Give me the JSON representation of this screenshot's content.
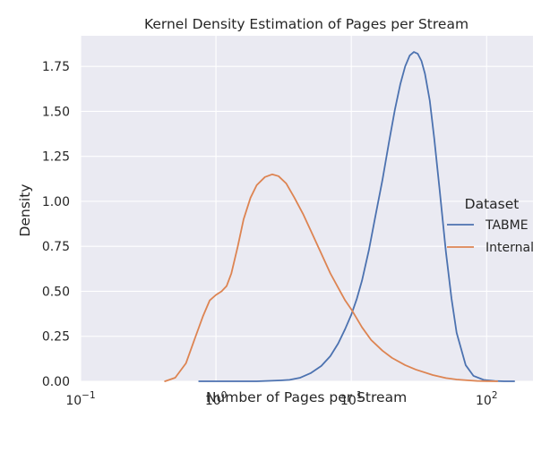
{
  "chart_data": {
    "type": "line",
    "title": "Kernel Density Estimation of Pages per Stream",
    "xlabel": "Number of Pages per Stream",
    "ylabel": "Density",
    "xscale": "log",
    "xlim": [
      0.1,
      220
    ],
    "ylim": [
      0,
      1.92
    ],
    "x_ticks": [
      {
        "value": 0.1,
        "base": "10",
        "exp": "−1"
      },
      {
        "value": 1,
        "base": "10",
        "exp": "0"
      },
      {
        "value": 10,
        "base": "10",
        "exp": "1"
      },
      {
        "value": 100,
        "base": "10",
        "exp": "2"
      }
    ],
    "y_ticks": [
      0.0,
      0.25,
      0.5,
      0.75,
      1.0,
      1.25,
      1.5,
      1.75
    ],
    "y_tick_labels": [
      "0.00",
      "0.25",
      "0.50",
      "0.75",
      "1.00",
      "1.25",
      "1.50",
      "1.75"
    ],
    "grid": true,
    "legend_title": "Dataset",
    "legend_position": "right",
    "series": [
      {
        "name": "TABME",
        "color": "#4c72b0",
        "x": [
          0.75,
          1.0,
          2.0,
          3.0,
          3.5,
          4.2,
          5.0,
          6.0,
          7.0,
          8.0,
          9.0,
          10.0,
          11.0,
          12.0,
          13.5,
          15.0,
          17.0,
          19.0,
          21.0,
          23.0,
          25.0,
          27.0,
          29.0,
          31.0,
          33.0,
          35.0,
          38.0,
          41.0,
          45.0,
          50.0,
          55.0,
          60.0,
          70.0,
          80.0,
          95.0,
          115.0,
          135.0,
          160.0
        ],
        "y": [
          0.0,
          0.0,
          0.0,
          0.005,
          0.008,
          0.02,
          0.045,
          0.085,
          0.14,
          0.21,
          0.29,
          0.37,
          0.46,
          0.56,
          0.73,
          0.91,
          1.12,
          1.33,
          1.51,
          1.65,
          1.75,
          1.81,
          1.83,
          1.82,
          1.78,
          1.71,
          1.56,
          1.35,
          1.06,
          0.72,
          0.46,
          0.27,
          0.09,
          0.03,
          0.008,
          0.002,
          0.0,
          0.0
        ]
      },
      {
        "name": "Internal",
        "color": "#dd8452",
        "x": [
          0.42,
          0.5,
          0.6,
          0.7,
          0.8,
          0.9,
          1.0,
          1.1,
          1.2,
          1.3,
          1.45,
          1.6,
          1.8,
          2.0,
          2.3,
          2.6,
          2.9,
          3.3,
          3.8,
          4.4,
          5.0,
          6.0,
          7.0,
          8.0,
          9.0,
          10.0,
          12.0,
          14.0,
          17.0,
          20.0,
          25.0,
          30.0,
          40.0,
          50.0,
          60.0,
          70.0,
          85.0,
          100.0,
          120.0
        ],
        "y": [
          0.0,
          0.02,
          0.1,
          0.24,
          0.36,
          0.45,
          0.48,
          0.5,
          0.53,
          0.6,
          0.75,
          0.9,
          1.02,
          1.09,
          1.135,
          1.15,
          1.14,
          1.1,
          1.02,
          0.93,
          0.84,
          0.71,
          0.6,
          0.52,
          0.45,
          0.4,
          0.3,
          0.23,
          0.17,
          0.13,
          0.09,
          0.065,
          0.035,
          0.018,
          0.01,
          0.006,
          0.002,
          0.001,
          0.0
        ]
      }
    ]
  }
}
